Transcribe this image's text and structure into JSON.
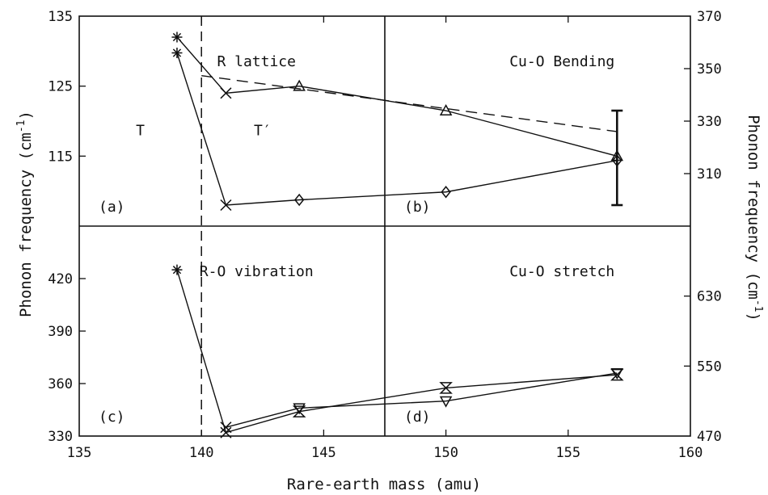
{
  "chart_data": {
    "type": "line",
    "x_axis": {
      "label": "Rare-earth mass (amu)",
      "range": [
        135,
        160
      ],
      "ticks": [
        135,
        140,
        145,
        150,
        155,
        160
      ]
    },
    "left_axis_label": "Phonon frequency (cm-1)",
    "right_axis_label": "Phonon frequency (cm-1)",
    "dashed_boundary_x": 140,
    "panels": [
      {
        "id": "a",
        "tag": "(a)",
        "title": "R lattice",
        "y_range": [
          105,
          135
        ],
        "y_ticks": [
          115,
          125,
          135
        ],
        "y_side": "left",
        "phase_labels": [
          {
            "text": "T",
            "x": 137.5,
            "y": 118
          },
          {
            "text": "T′",
            "x": 142.5,
            "y": 118
          }
        ],
        "points": [
          {
            "x": 139,
            "y": 132,
            "marker": "star"
          },
          {
            "x": 141,
            "y": 124,
            "marker": "x"
          },
          {
            "x": 144,
            "y": 125,
            "marker": "triangle-up"
          },
          {
            "x": 150,
            "y": 121.5,
            "marker": "triangle-up"
          },
          {
            "x": 157,
            "y": 115,
            "marker": "triangle-up"
          }
        ],
        "dashed_fit": [
          [
            140,
            126.5
          ],
          [
            157,
            118.5
          ]
        ],
        "error_bar": {
          "x": 157,
          "low": 108,
          "high": 121.5
        }
      },
      {
        "id": "b",
        "tag": "(b)",
        "title": "Cu-O Bending",
        "y_range": [
          290,
          370
        ],
        "y_ticks": [
          310,
          330,
          350,
          370
        ],
        "y_side": "right",
        "points": [
          {
            "x": 139,
            "y": 356,
            "marker": "star"
          },
          {
            "x": 141,
            "y": 298,
            "marker": "x"
          },
          {
            "x": 144,
            "y": 300,
            "marker": "diamond"
          },
          {
            "x": 150,
            "y": 303,
            "marker": "diamond"
          },
          {
            "x": 157,
            "y": 315,
            "marker": "diamond"
          }
        ]
      },
      {
        "id": "c",
        "tag": "(c)",
        "title": "R-O vibration",
        "y_range": [
          330,
          450
        ],
        "y_ticks": [
          330,
          360,
          390,
          420
        ],
        "y_side": "left",
        "points": [
          {
            "x": 141,
            "y": 335,
            "marker": "x"
          },
          {
            "x": 144,
            "y": 346,
            "marker": "triangle-down"
          },
          {
            "x": 150,
            "y": 350,
            "marker": "triangle-down"
          },
          {
            "x": 157,
            "y": 366,
            "marker": "triangle-down"
          }
        ]
      },
      {
        "id": "d",
        "tag": "(d)",
        "title": "Cu-O stretch",
        "y_range": [
          470,
          710
        ],
        "y_ticks": [
          470,
          550,
          630
        ],
        "y_side": "right",
        "points": [
          {
            "x": 139,
            "y": 660,
            "marker": "star"
          },
          {
            "x": 141,
            "y": 474,
            "marker": "x"
          },
          {
            "x": 144,
            "y": 498,
            "marker": "hourglass"
          },
          {
            "x": 150,
            "y": 525,
            "marker": "hourglass"
          },
          {
            "x": 157,
            "y": 540,
            "marker": "hourglass"
          }
        ]
      }
    ]
  }
}
